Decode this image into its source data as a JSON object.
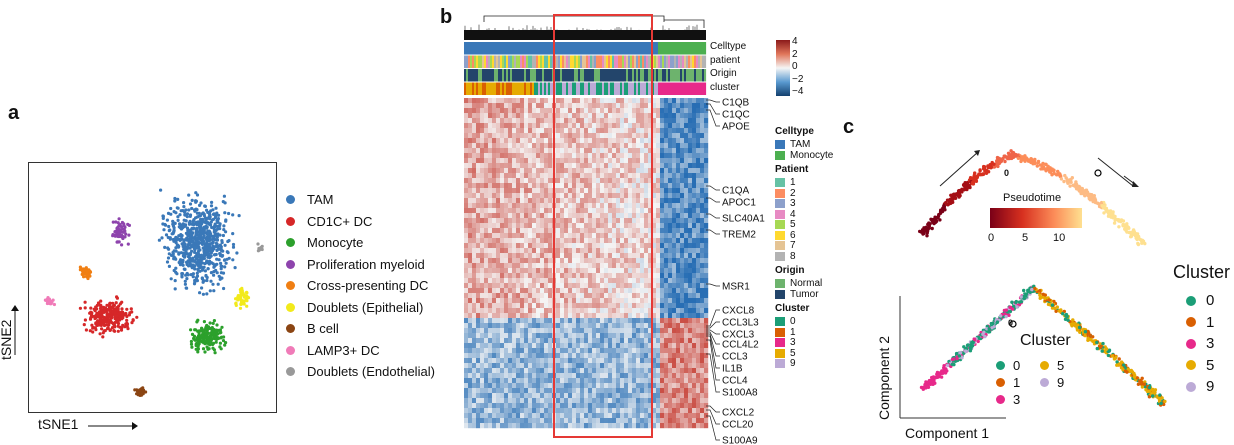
{
  "panel_a": {
    "letter": "a",
    "x_axis_label": "tSNE1",
    "y_axis_label": "tSNE2",
    "legend": [
      {
        "label": "TAM",
        "color": "#3a78b8"
      },
      {
        "label": "CD1C+ DC",
        "color": "#d62728"
      },
      {
        "label": "Monocyte",
        "color": "#2ca02c"
      },
      {
        "label": "Proliferation myeloid",
        "color": "#8e44ad"
      },
      {
        "label": "Cross-presenting DC",
        "color": "#f07f13"
      },
      {
        "label": "Doublets (Epithelial)",
        "color": "#f2ea1b"
      },
      {
        "label": "B cell",
        "color": "#8b4513"
      },
      {
        "label": "LAMP3+ DC",
        "color": "#f07bb8"
      },
      {
        "label": "Doublets (Endothelial)",
        "color": "#999999"
      }
    ]
  },
  "panel_b": {
    "letter": "b",
    "annotation_rows": [
      "Celltype",
      "patient",
      "Origin",
      "cluster"
    ],
    "colorbar_ticks": [
      "4",
      "2",
      "0",
      "−2",
      "−4"
    ],
    "genes": [
      "C1QB",
      "C1QC",
      "APOE",
      "C1QA",
      "APOC1",
      "SLC40A1",
      "TREM2",
      "MSR1",
      "CXCL8",
      "CCL3L3",
      "CXCL3",
      "CCL4L2",
      "CCL3",
      "IL1B",
      "CCL4",
      "S100A8",
      "CXCL2",
      "CCL20",
      "S100A9"
    ],
    "legend_groups": [
      {
        "title": "Celltype",
        "items": [
          {
            "label": "TAM",
            "color": "#3a78b8"
          },
          {
            "label": "Monocyte",
            "color": "#4caf50"
          }
        ]
      },
      {
        "title": "Patient",
        "items": [
          {
            "label": "1",
            "color": "#66c2a5"
          },
          {
            "label": "2",
            "color": "#fc8d62"
          },
          {
            "label": "3",
            "color": "#8da0cb"
          },
          {
            "label": "4",
            "color": "#e78ac3"
          },
          {
            "label": "5",
            "color": "#a6d854"
          },
          {
            "label": "6",
            "color": "#ffd92f"
          },
          {
            "label": "7",
            "color": "#e5c494"
          },
          {
            "label": "8",
            "color": "#b3b3b3"
          }
        ]
      },
      {
        "title": "Origin",
        "items": [
          {
            "label": "Normal",
            "color": "#6db36d"
          },
          {
            "label": "Tumor",
            "color": "#23456b"
          }
        ]
      },
      {
        "title": "Cluster",
        "items": [
          {
            "label": "0",
            "color": "#1b9e77"
          },
          {
            "label": "1",
            "color": "#d95f02"
          },
          {
            "label": "3",
            "color": "#e7298a"
          },
          {
            "label": "5",
            "color": "#e6ab02"
          },
          {
            "label": "9",
            "color": "#bcaad6"
          }
        ]
      }
    ]
  },
  "panel_c": {
    "letter": "c",
    "colorbar_title": "Pseudotime",
    "colorbar_ticks": [
      "0",
      "5",
      "10"
    ],
    "x_axis_label": "Component 1",
    "y_axis_label": "Component 2",
    "branch_label": "0",
    "inner_legend_title": "Cluster",
    "inner_legend": [
      {
        "label": "0",
        "color": "#1b9e77"
      },
      {
        "label": "5",
        "color": "#e6ab02"
      },
      {
        "label": "1",
        "color": "#d95f02"
      },
      {
        "label": "9",
        "color": "#bcaad6"
      },
      {
        "label": "3",
        "color": "#e7298a"
      }
    ],
    "outer_legend_title": "Cluster",
    "outer_legend": [
      {
        "label": "0",
        "color": "#1b9e77"
      },
      {
        "label": "1",
        "color": "#d95f02"
      },
      {
        "label": "3",
        "color": "#e7298a"
      },
      {
        "label": "5",
        "color": "#e6ab02"
      },
      {
        "label": "9",
        "color": "#bcaad6"
      }
    ]
  }
}
